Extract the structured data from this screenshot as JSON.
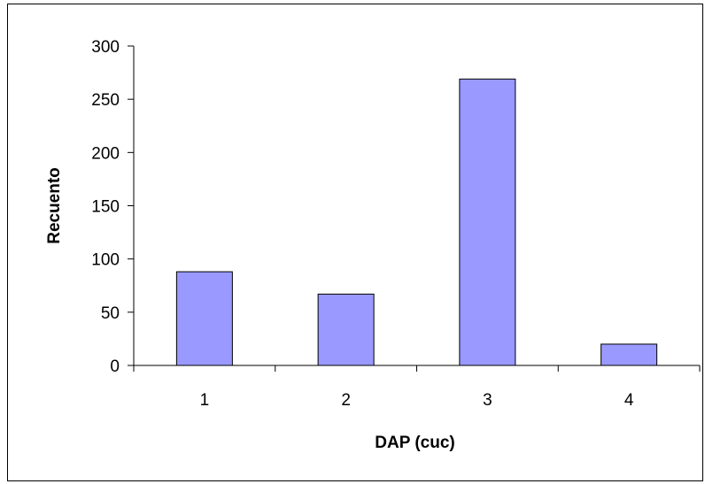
{
  "chart_data": {
    "type": "bar",
    "categories": [
      "1",
      "2",
      "3",
      "4"
    ],
    "values": [
      88,
      67,
      269,
      20
    ],
    "xlabel": "DAP (cuc)",
    "ylabel": "Recuento",
    "ylim": [
      0,
      300
    ],
    "yticks": [
      "0",
      "50",
      "100",
      "150",
      "200",
      "250",
      "300"
    ],
    "grid": false,
    "legend": "none",
    "colors": {
      "bar_fill": "#9999ff",
      "bar_stroke": "#000000",
      "axis": "#000000",
      "background": "#ffffff"
    }
  }
}
